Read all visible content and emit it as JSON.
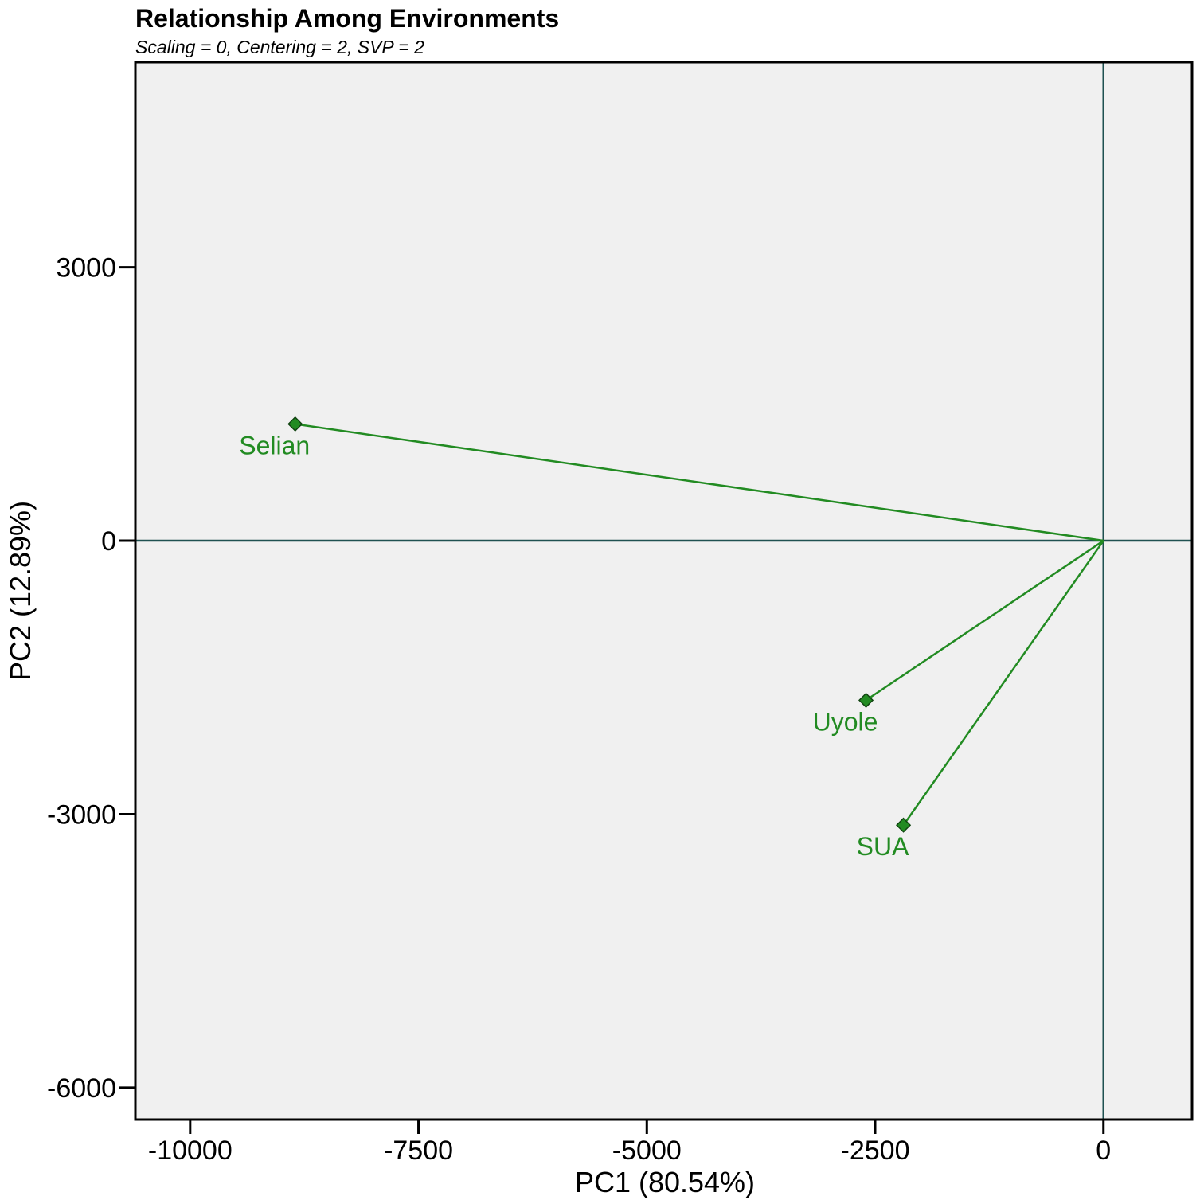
{
  "chart_data": {
    "type": "scatter",
    "title": "Relationship Among Environments",
    "subtitle": "Scaling = 0, Centering = 2, SVP = 2",
    "xlabel": "PC1 (80.54%)",
    "ylabel": "PC2 (12.89%)",
    "xlim": [
      -10600,
      970
    ],
    "ylim": [
      -6350,
      5250
    ],
    "xticks": [
      -10000,
      -7500,
      -5000,
      -2500,
      0
    ],
    "xtick_labels": [
      "-10000",
      "-7500",
      "-5000",
      "-2500",
      "0"
    ],
    "yticks": [
      3000,
      0,
      -3000,
      -6000
    ],
    "ytick_labels": [
      "3000",
      "0",
      "-3000",
      "-6000"
    ],
    "grid": false,
    "reference_lines": {
      "x": 0,
      "y": 0
    },
    "vectors_from_origin": true,
    "points": [
      {
        "label": "Selian",
        "x": -8850,
        "y": 1280
      },
      {
        "label": "Uyole",
        "x": -2600,
        "y": -1750
      },
      {
        "label": "SUA",
        "x": -2190,
        "y": -3120
      }
    ],
    "colors": {
      "panel_background": "#f0f0f0",
      "reference_line": "#1f5151",
      "points": "#228b22",
      "labels": "#228b22",
      "point_outline": "#114411"
    }
  }
}
